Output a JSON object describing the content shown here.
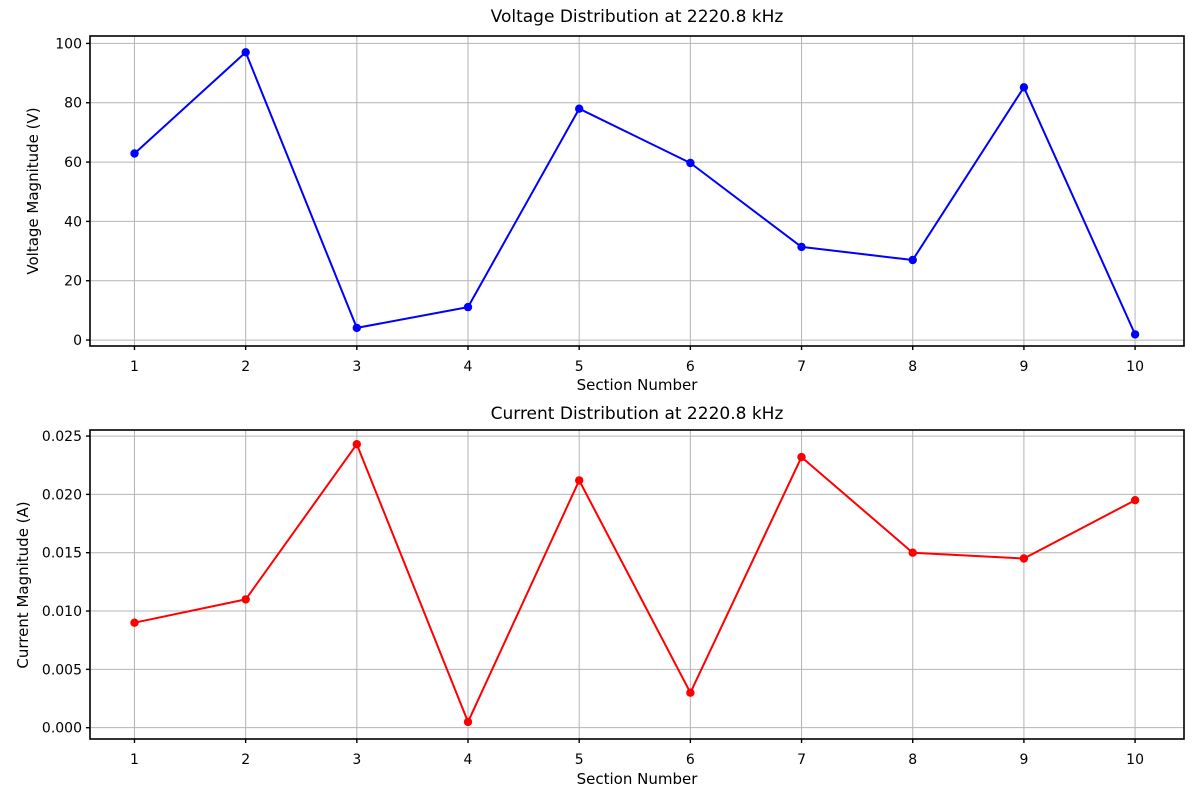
{
  "figure": {
    "background": "#ffffff"
  },
  "chart_data": [
    {
      "type": "line",
      "title": "Voltage Distribution at 2220.8 kHz",
      "xlabel": "Section Number",
      "ylabel": "Voltage Magnitude (V)",
      "x": [
        1,
        2,
        3,
        4,
        5,
        6,
        7,
        8,
        9,
        10
      ],
      "values": [
        62.9,
        97.0,
        4.1,
        11.1,
        78.0,
        59.7,
        31.4,
        27.0,
        85.2,
        1.9
      ],
      "line_color": "#0000ff",
      "marker": "o",
      "grid": true,
      "legend": "none",
      "xticks": [
        1,
        2,
        3,
        4,
        5,
        6,
        7,
        8,
        9,
        10
      ],
      "xtick_labels": [
        "1",
        "2",
        "3",
        "4",
        "5",
        "6",
        "7",
        "8",
        "9",
        "10"
      ],
      "yticks": [
        0,
        20,
        40,
        60,
        80,
        100
      ],
      "ytick_labels": [
        "0",
        "20",
        "40",
        "60",
        "80",
        "100"
      ],
      "xlim": [
        0.6,
        10.44
      ],
      "ylim": [
        -2.0,
        102.5
      ]
    },
    {
      "type": "line",
      "title": "Current Distribution at 2220.8 kHz",
      "xlabel": "Section Number",
      "ylabel": "Current Magnitude (A)",
      "x": [
        1,
        2,
        3,
        4,
        5,
        6,
        7,
        8,
        9,
        10
      ],
      "values": [
        0.009,
        0.011,
        0.0243,
        0.0005,
        0.0212,
        0.003,
        0.0232,
        0.015,
        0.0145,
        0.0195
      ],
      "line_color": "#ff0000",
      "marker": "o",
      "grid": true,
      "legend": "none",
      "xticks": [
        1,
        2,
        3,
        4,
        5,
        6,
        7,
        8,
        9,
        10
      ],
      "xtick_labels": [
        "1",
        "2",
        "3",
        "4",
        "5",
        "6",
        "7",
        "8",
        "9",
        "10"
      ],
      "yticks": [
        0,
        0.005,
        0.01,
        0.015,
        0.02,
        0.025
      ],
      "ytick_labels": [
        "0.000",
        "0.005",
        "0.010",
        "0.015",
        "0.020",
        "0.025"
      ],
      "xlim": [
        0.6,
        10.44
      ],
      "ylim": [
        -0.00097,
        0.02552
      ]
    }
  ],
  "colors": {
    "grid": "#b4b4b4",
    "spine": "#000000",
    "background": "#ffffff"
  }
}
